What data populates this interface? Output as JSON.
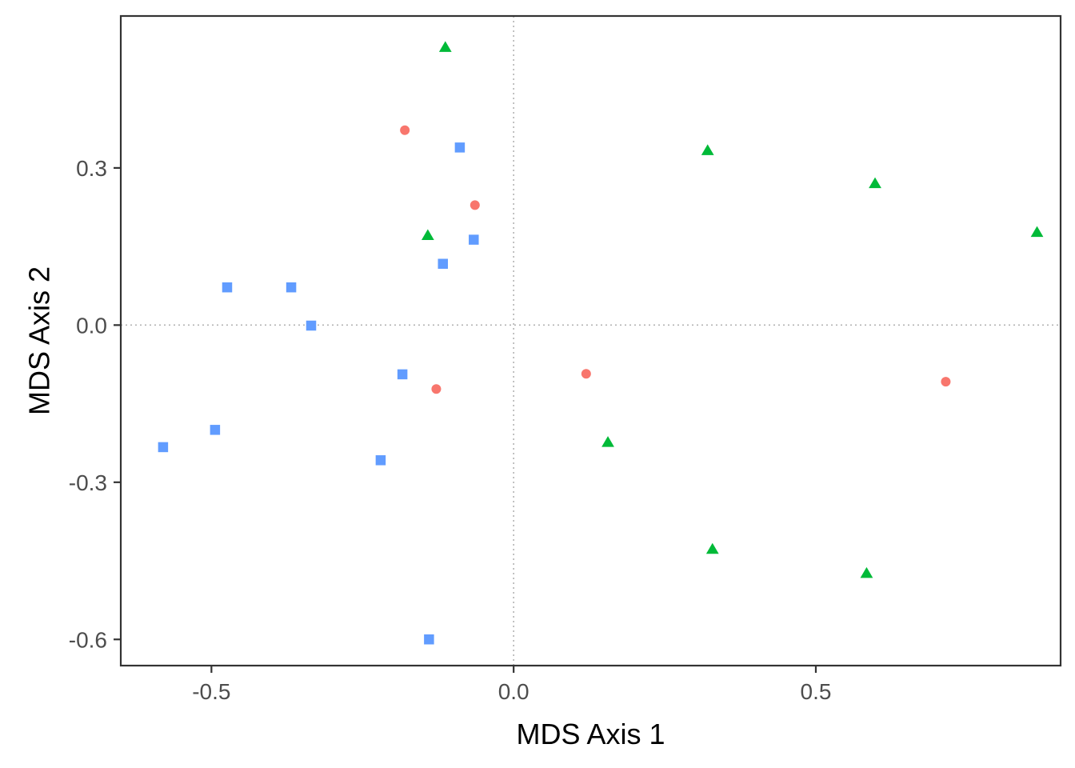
{
  "chart_data": {
    "type": "scatter",
    "xlabel": "MDS Axis 1",
    "ylabel": "MDS Axis 2",
    "xlim": [
      -0.65,
      0.905
    ],
    "ylim": [
      -0.65,
      0.59
    ],
    "x_ticks": [
      -0.5,
      0.0,
      0.5
    ],
    "x_tick_labels": [
      "-0.5",
      "0.0",
      "0.5"
    ],
    "y_ticks": [
      -0.6,
      -0.3,
      0.0,
      0.3
    ],
    "y_tick_labels": [
      "-0.6",
      "-0.3",
      "0.0",
      "0.3"
    ],
    "reference_lines": {
      "x": 0,
      "y": 0,
      "style": "dotted",
      "color": "#b3b3b3"
    },
    "grid": false,
    "legend": "none",
    "series": [
      {
        "marker": "circle",
        "color": "#F8766D",
        "points": [
          {
            "x": -0.18,
            "y": 0.372
          },
          {
            "x": -0.064,
            "y": 0.229
          },
          {
            "x": -0.128,
            "y": -0.122
          },
          {
            "x": 0.12,
            "y": -0.093
          },
          {
            "x": 0.715,
            "y": -0.108
          }
        ]
      },
      {
        "marker": "triangle",
        "color": "#00BA38",
        "points": [
          {
            "x": -0.113,
            "y": 0.53
          },
          {
            "x": 0.321,
            "y": 0.333
          },
          {
            "x": 0.598,
            "y": 0.27
          },
          {
            "x": 0.866,
            "y": 0.177
          },
          {
            "x": -0.142,
            "y": 0.171
          },
          {
            "x": 0.156,
            "y": -0.224
          },
          {
            "x": 0.329,
            "y": -0.428
          },
          {
            "x": 0.584,
            "y": -0.474
          }
        ]
      },
      {
        "marker": "square",
        "color": "#619CFF",
        "points": [
          {
            "x": -0.089,
            "y": 0.339
          },
          {
            "x": -0.066,
            "y": 0.163
          },
          {
            "x": -0.117,
            "y": 0.117
          },
          {
            "x": -0.474,
            "y": 0.072
          },
          {
            "x": -0.368,
            "y": 0.072
          },
          {
            "x": -0.335,
            "y": -0.001
          },
          {
            "x": -0.184,
            "y": -0.094
          },
          {
            "x": -0.494,
            "y": -0.2
          },
          {
            "x": -0.58,
            "y": -0.233
          },
          {
            "x": -0.22,
            "y": -0.258
          },
          {
            "x": -0.14,
            "y": -0.6
          }
        ]
      }
    ]
  }
}
